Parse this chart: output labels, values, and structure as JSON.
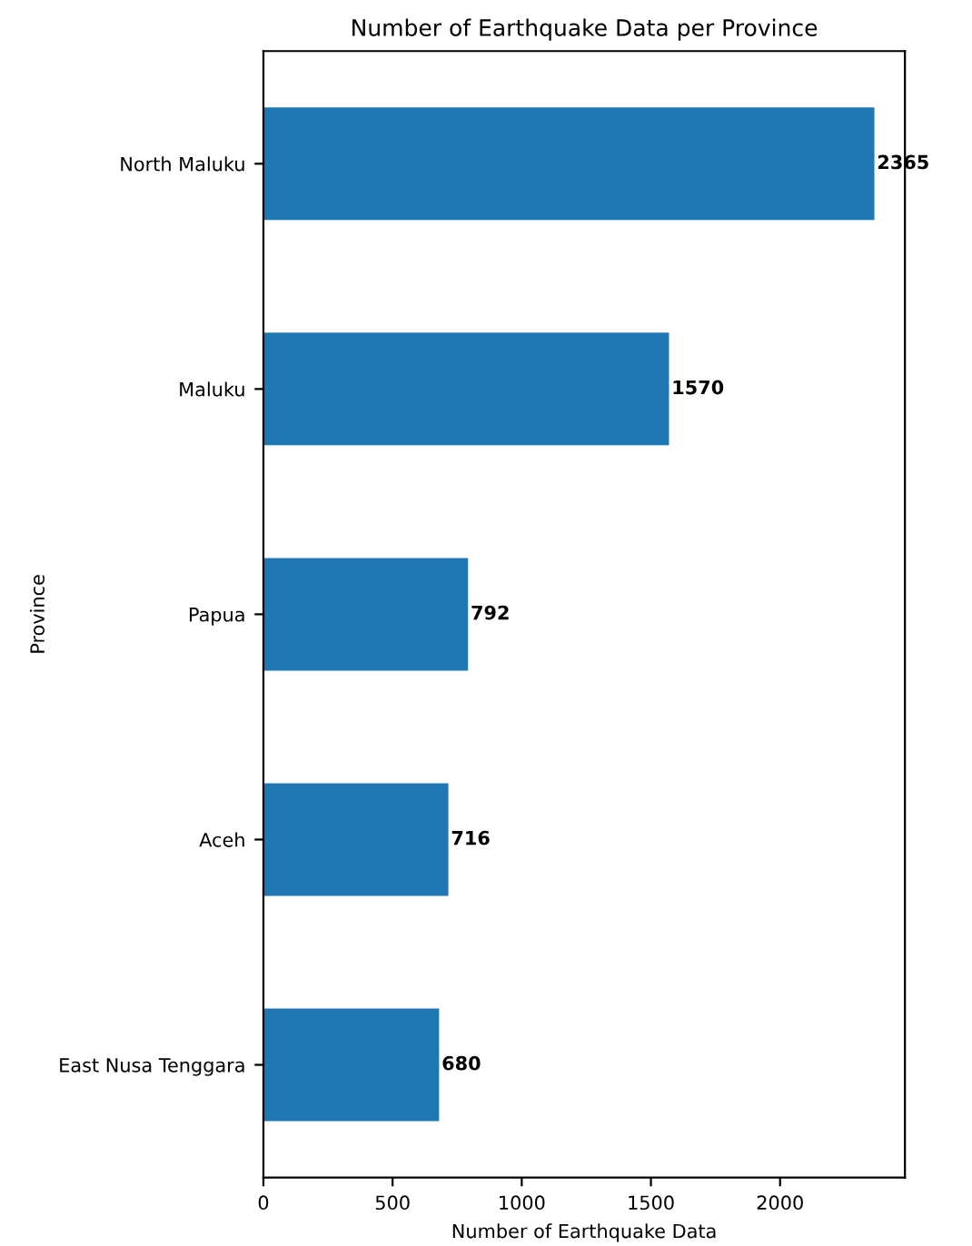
{
  "chart_data": {
    "type": "bar",
    "orientation": "horizontal",
    "title": "Number of Earthquake Data per Province",
    "xlabel": "Number of Earthquake Data",
    "ylabel": "Province",
    "categories": [
      "North Maluku",
      "Maluku",
      "Papua",
      "Aceh",
      "East Nusa Tenggara"
    ],
    "series": [
      {
        "color": "#1f77b4",
        "values": [
          2365,
          1570,
          792,
          716,
          680
        ]
      }
    ],
    "xlim": [
      0,
      2483.25
    ],
    "xticks": [
      0,
      500,
      1000,
      1500,
      2000
    ],
    "data_labels": true,
    "grid": false,
    "legend": false
  }
}
